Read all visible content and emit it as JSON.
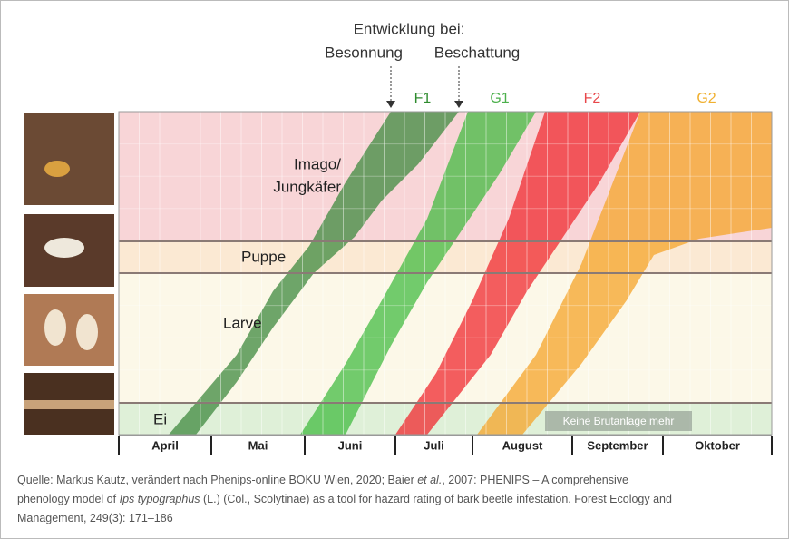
{
  "title": "Entwicklung bei:",
  "scenarios": [
    "Besonnung",
    "Beschattung"
  ],
  "generations": [
    "F1",
    "G1",
    "F2",
    "G2"
  ],
  "stages": {
    "imago": [
      "Imago/",
      "Jungkäfer"
    ],
    "pupa": "Puppe",
    "larva": "Larve",
    "egg": "Ei"
  },
  "note": "Keine Brutanlage mehr",
  "months": [
    "April",
    "Mai",
    "Juni",
    "Juli",
    "August",
    "September",
    "Oktober"
  ],
  "caption": [
    "Quelle: Markus Kautz, verändert nach Phenips-online BOKU Wien, 2020; Baier ",
    "et al.",
    ", 2007: PHENIPS – A comprehensive",
    "phenology model of ",
    "Ips typographus",
    " (L.) (Col., Scolytinae) as a tool for hazard rating of bark beetle infestation. Forest Ecology and",
    "Management, 249(3): 171–186"
  ]
}
